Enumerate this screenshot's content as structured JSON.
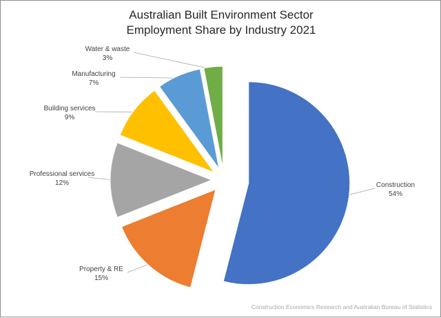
{
  "chart_data": {
    "type": "pie",
    "title": "Australian Built Environment Sector Employment Share by Industry 2021",
    "title_lines": [
      "Australian Built Environment Sector",
      "Employment Share by Industry 2021"
    ],
    "value_unit": "%",
    "slices": [
      {
        "label": "Construction",
        "value": 54,
        "color": "#4472C4"
      },
      {
        "label": "Property & RE",
        "value": 15,
        "color": "#ED7D31"
      },
      {
        "label": "Professional services",
        "value": 12,
        "color": "#A5A5A5"
      },
      {
        "label": "Building services",
        "value": 9,
        "color": "#FFC000"
      },
      {
        "label": "Manufacturing",
        "value": 7,
        "color": "#5B9BD5"
      },
      {
        "label": "Water & waste",
        "value": 3,
        "color": "#70AD47"
      }
    ],
    "exploded": true,
    "legend": "none",
    "data_labels": "outside with leader lines"
  },
  "source_note": "Construction Economics Research and Australian Bureau of Statistics"
}
